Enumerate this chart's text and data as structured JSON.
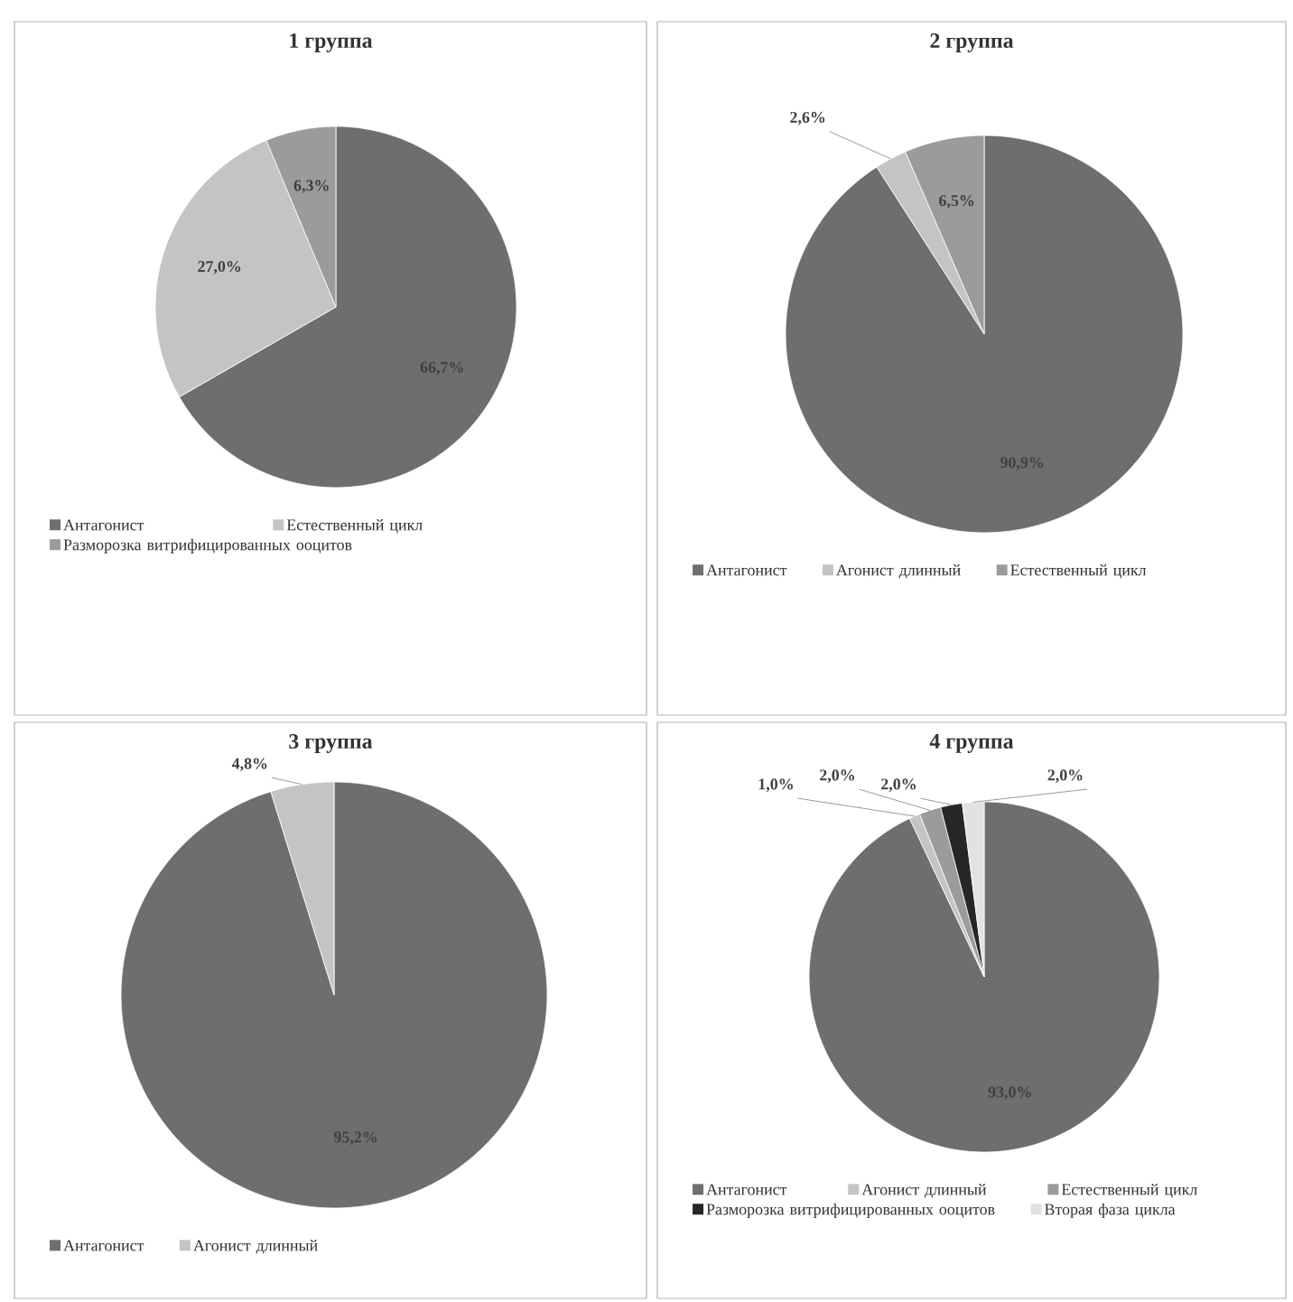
{
  "chart_data": [
    {
      "type": "pie",
      "title": "1 группа",
      "categories": [
        "Антагонист",
        "Естественный цикл",
        "Разморозка витрифицированных ооцитов"
      ],
      "values": [
        66.7,
        27.0,
        6.3
      ],
      "value_labels": [
        "66,7%",
        "27,0%",
        "6,3%"
      ],
      "colors": [
        "#6e6e6e",
        "#c4c4c4",
        "#9b9b9b"
      ],
      "legend": "bottom"
    },
    {
      "type": "pie",
      "title": "2 группа",
      "categories": [
        "Антагонист",
        "Агонист длинный",
        "Естественный цикл"
      ],
      "values": [
        90.9,
        2.6,
        6.5
      ],
      "value_labels": [
        "90,9%",
        "2,6%",
        "6,5%"
      ],
      "colors": [
        "#6e6e6e",
        "#c4c4c4",
        "#9b9b9b"
      ],
      "legend": "bottom"
    },
    {
      "type": "pie",
      "title": "3 группа",
      "categories": [
        "Антагонист",
        "Агонист длинный"
      ],
      "values": [
        95.2,
        4.8
      ],
      "value_labels": [
        "95,2%",
        "4,8%"
      ],
      "colors": [
        "#6e6e6e",
        "#c4c4c4"
      ],
      "legend": "bottom"
    },
    {
      "type": "pie",
      "title": "4 группа",
      "categories": [
        "Антагонист",
        "Агонист длинный",
        "Естественный цикл",
        "Разморозка витрифицированных ооцитов",
        "Вторая фаза цикла"
      ],
      "values": [
        93.0,
        1.0,
        2.0,
        2.0,
        2.0
      ],
      "value_labels": [
        "93,0%",
        "1,0%",
        "2,0%",
        "2,0%",
        "2,0%"
      ],
      "colors": [
        "#6e6e6e",
        "#c4c4c4",
        "#9b9b9b",
        "#262626",
        "#e2e2e2"
      ],
      "legend": "bottom"
    }
  ]
}
